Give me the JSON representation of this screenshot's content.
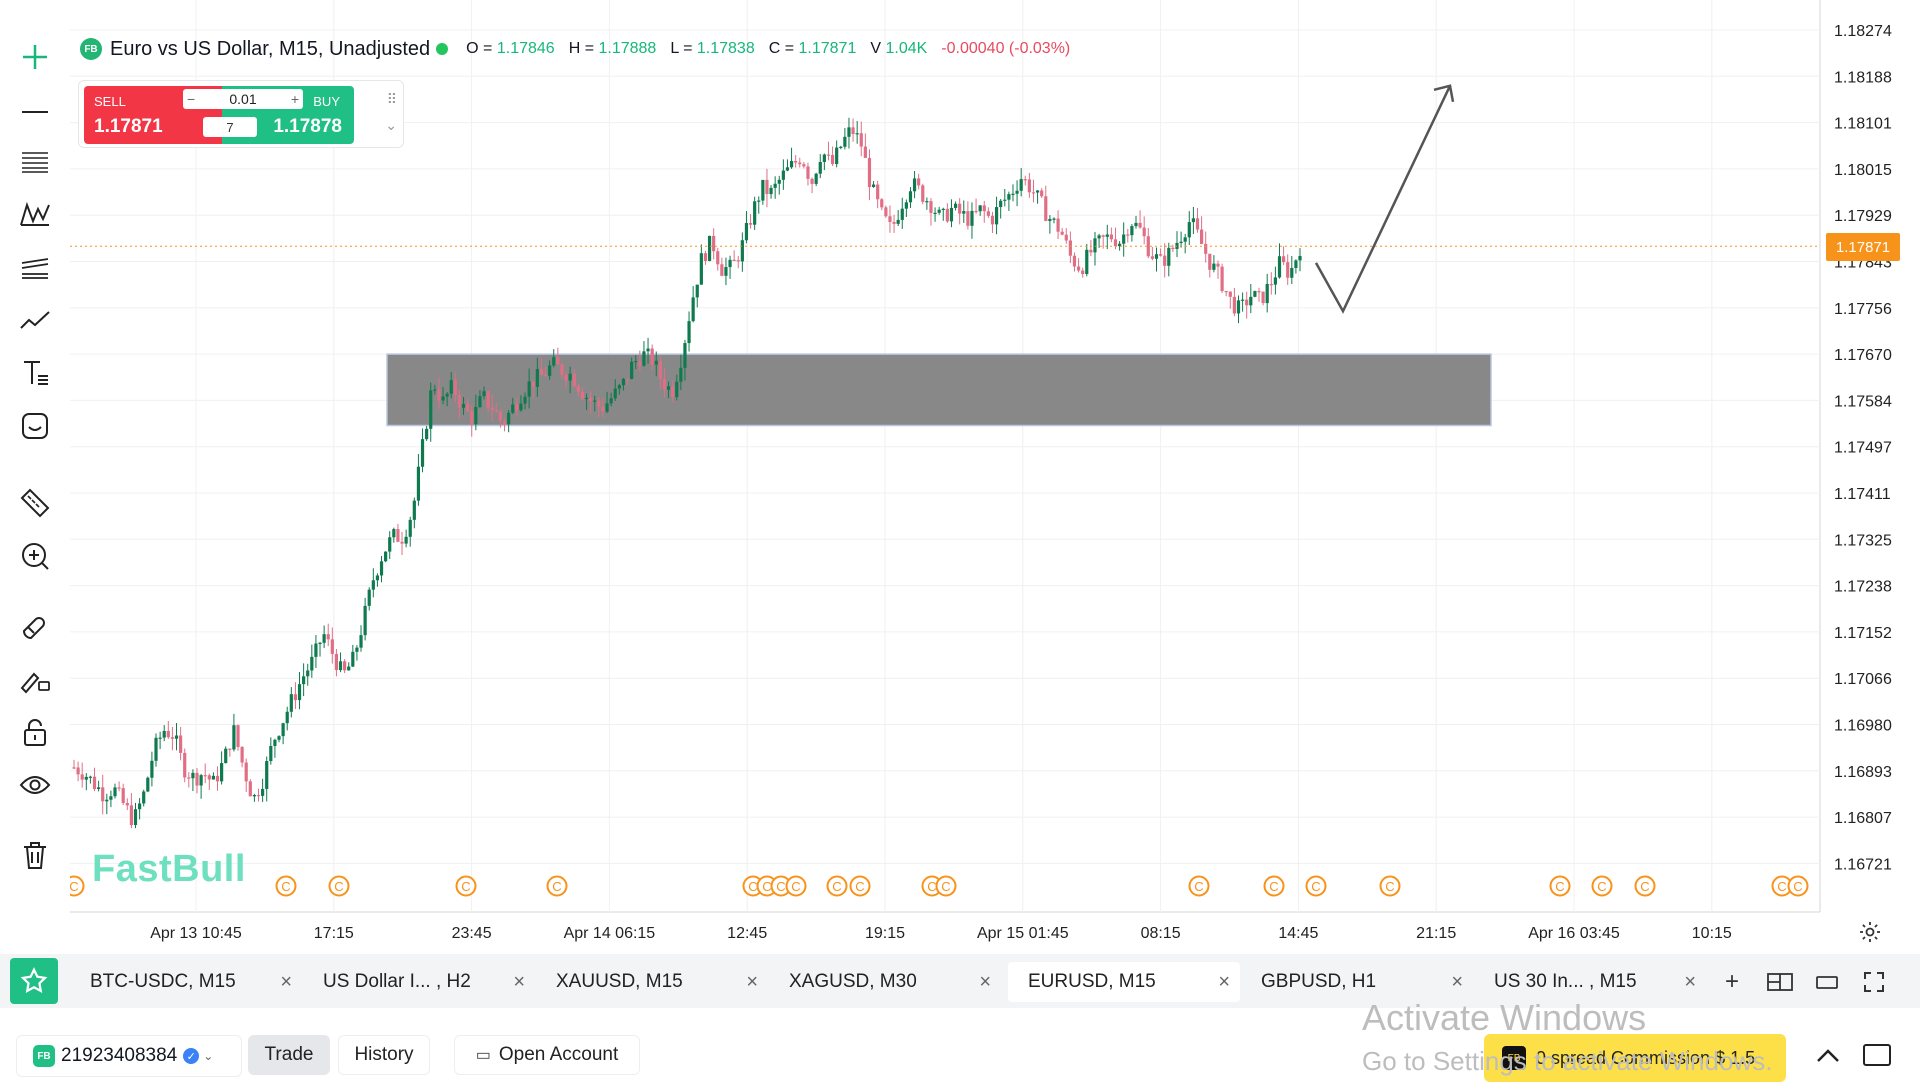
{
  "toolbar": {
    "tools": [
      "crosshair-icon",
      "horizontal-line-icon",
      "fib-lines-icon",
      "pattern-icon",
      "channel-icon",
      "trendline-icon",
      "text-tool-icon",
      "emoji-icon",
      "ruler-icon",
      "zoom-in-icon",
      "magnet-icon",
      "brush-lock-icon",
      "lock-icon",
      "eye-icon",
      "trash-icon"
    ]
  },
  "legend": {
    "badge": "FB",
    "title": "Euro vs US Dollar, M15, Unadjusted",
    "open_label": "O =",
    "open": "1.17846",
    "high_label": "H =",
    "high": "1.17888",
    "low_label": "L =",
    "low": "1.17838",
    "close_label": "C =",
    "close": "1.17871",
    "vol_label": "V",
    "vol": "1.04K",
    "change": "-0.00040 (-0.03%)"
  },
  "trade_widget": {
    "sell_label": "SELL",
    "sell_price": "1.17871",
    "buy_label": "BUY",
    "buy_price": "1.17878",
    "lot": "0.01",
    "minus": "−",
    "plus": "+",
    "spread": "7",
    "drag": "⠿",
    "collapse": "⌄"
  },
  "last_price": "1.17871",
  "watermark": "FastBull",
  "chart_data": {
    "type": "candlestick",
    "symbol": "Euro vs US Dollar, M15, Unadjusted",
    "price_axis": [
      "1.18274",
      "1.18188",
      "1.18101",
      "1.18015",
      "1.17929",
      "1.17843",
      "1.17756",
      "1.17670",
      "1.17584",
      "1.17497",
      "1.17411",
      "1.17325",
      "1.17238",
      "1.17152",
      "1.17066",
      "1.16980",
      "1.16893",
      "1.16807",
      "1.16721"
    ],
    "time_axis": [
      "Apr 13 10:45",
      "17:15",
      "23:45",
      "Apr 14 06:15",
      "12:45",
      "19:15",
      "Apr 15 01:45",
      "08:15",
      "14:45",
      "21:15",
      "Apr 16 03:45",
      "10:15"
    ],
    "ylim": [
      1.1668,
      1.1831
    ],
    "close_path": [
      1.169,
      1.1689,
      1.1687,
      1.1685,
      1.1686,
      1.1683,
      1.168,
      1.1685,
      1.1693,
      1.1697,
      1.1696,
      1.169,
      1.1688,
      1.1689,
      1.1687,
      1.1691,
      1.1697,
      1.169,
      1.1684,
      1.1688,
      1.1695,
      1.1699,
      1.1703,
      1.1707,
      1.171,
      1.1715,
      1.1711,
      1.1707,
      1.171,
      1.1717,
      1.1725,
      1.173,
      1.1733,
      1.1733,
      1.1738,
      1.175,
      1.1762,
      1.1758,
      1.1761,
      1.1757,
      1.1755,
      1.1759,
      1.1757,
      1.1754,
      1.1757,
      1.176,
      1.1762,
      1.1763,
      1.1765,
      1.1764,
      1.1763,
      1.176,
      1.1758,
      1.1757,
      1.1759,
      1.1761,
      1.1765,
      1.1767,
      1.1766,
      1.1762,
      1.176,
      1.1767,
      1.1777,
      1.1785,
      1.1788,
      1.1783,
      1.1783,
      1.1787,
      1.1793,
      1.1798,
      1.1797,
      1.18,
      1.1802,
      1.1804,
      1.1799,
      1.1805,
      1.1802,
      1.1806,
      1.1809,
      1.1806,
      1.1798,
      1.1793,
      1.179,
      1.1795,
      1.1799,
      1.1797,
      1.1795,
      1.1792,
      1.1794,
      1.1793,
      1.1792,
      1.1794,
      1.1792,
      1.1795,
      1.1797,
      1.18,
      1.1798,
      1.1795,
      1.1792,
      1.179,
      1.1785,
      1.1783,
      1.1786,
      1.1788,
      1.1789,
      1.1788,
      1.1792,
      1.179,
      1.1786,
      1.1784,
      1.1786,
      1.1789,
      1.1792,
      1.1788,
      1.1784,
      1.1781,
      1.1777,
      1.1775,
      1.1778,
      1.1777,
      1.178,
      1.1784,
      1.1782,
      1.1787
    ],
    "shapes": {
      "zone": {
        "price_top": 1.1767,
        "price_bottom": 1.17537,
        "time_start": "Apr 13 20:30",
        "time_end": "Apr 16 00:45",
        "color": "#777777"
      },
      "projection": {
        "label": "arrow",
        "points": [
          [
            1.1784,
            "14:45+1"
          ],
          [
            1.1775,
            "17:45"
          ],
          [
            1.1817,
            "23:00"
          ]
        ]
      }
    },
    "event_markers": 24,
    "colors": {
      "up": "#0f7a4f",
      "down": "#e06f86",
      "price_line": "#f7931a"
    }
  },
  "tabs": [
    {
      "label": "BTC-USDC, M15",
      "active": false
    },
    {
      "label": "US Dollar I... , H2",
      "active": false
    },
    {
      "label": "XAUUSD, M15",
      "active": false
    },
    {
      "label": "XAGUSD, M30",
      "active": false
    },
    {
      "label": "EURUSD, M15",
      "active": true
    },
    {
      "label": "GBPUSD, H1",
      "active": false
    },
    {
      "label": "US 30 In... , M15",
      "active": false
    }
  ],
  "tab_close": "×",
  "tabbar_icons": {
    "add": "+",
    "layout": "layout-icon",
    "window": "window-icon",
    "fullscreen": "fullscreen-icon"
  },
  "account": {
    "badge": "FB",
    "number": "21923408384",
    "chev": "⌄"
  },
  "bottom": {
    "trade": "Trade",
    "history": "History",
    "open_account": "Open Account"
  },
  "activate": {
    "line1": "Activate Windows",
    "line2": "Go to Settings to activate Windows."
  },
  "promo": {
    "icon": "FB",
    "text": "0 spread Commission $ 1.5"
  }
}
